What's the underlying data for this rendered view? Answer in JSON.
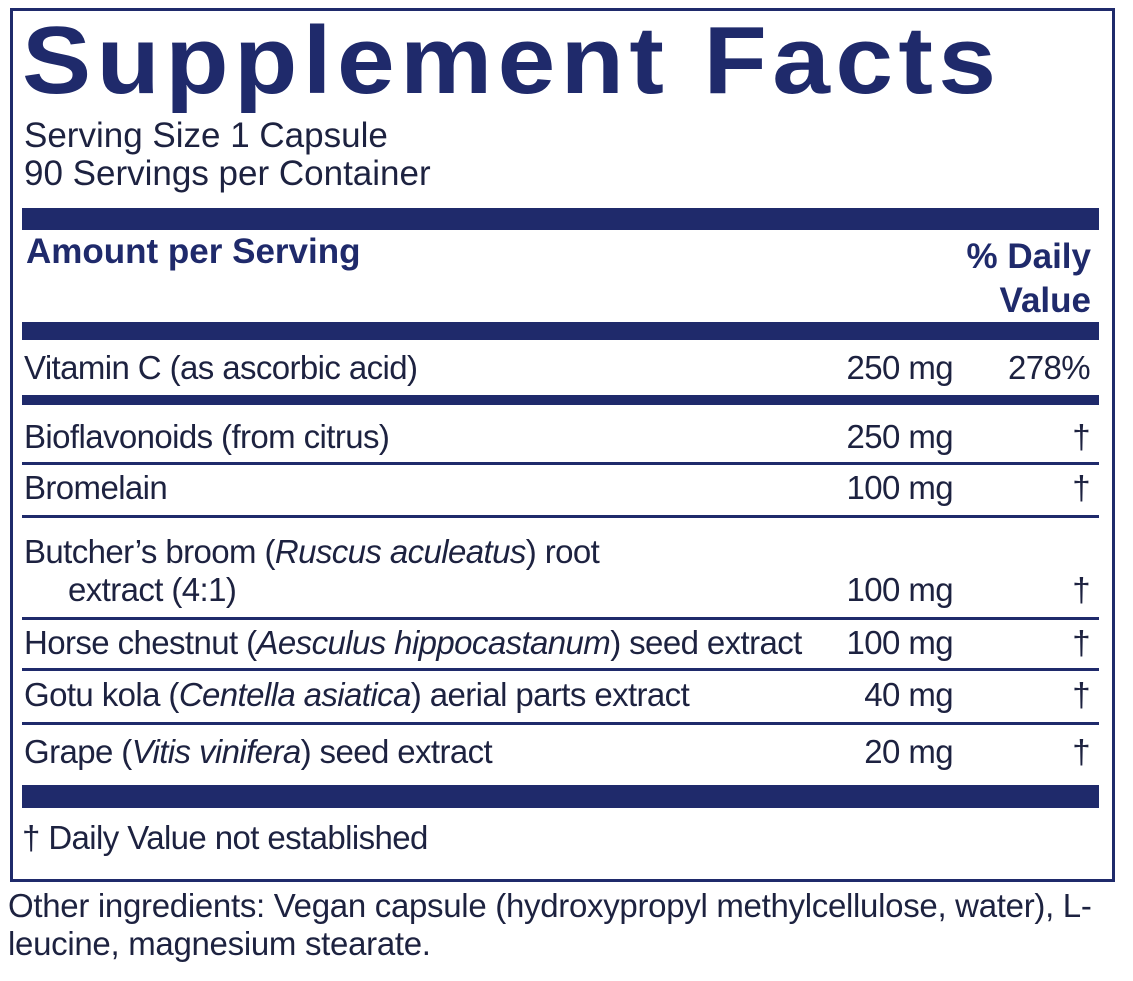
{
  "title": "Supplement Facts",
  "serving_size": "Serving Size 1 Capsule",
  "servings": "90 Servings per Container",
  "header": {
    "amount": "Amount per Serving",
    "dv_lines": [
      "% Daily",
      "Value"
    ]
  },
  "rows": [
    {
      "name": [
        {
          "text": "Vitamin C (as ascorbic acid)"
        }
      ],
      "amount": "250 mg",
      "dv": "278%"
    },
    {
      "name": [
        {
          "text": "Bioflavonoids (from citrus)"
        }
      ],
      "amount": "250 mg",
      "dv": "†"
    },
    {
      "name": [
        {
          "text": "Bromelain"
        }
      ],
      "amount": "100 mg",
      "dv": "†"
    },
    {
      "name": [
        {
          "text": "Butcher’s broom ("
        },
        {
          "text": "Ruscus aculeatus",
          "italic": true
        },
        {
          "text": ") root"
        }
      ],
      "name_line2": "extract (4:1)",
      "amount": "100 mg",
      "dv": "†"
    },
    {
      "name": [
        {
          "text": "Horse chestnut ("
        },
        {
          "text": "Aesculus hippocastanum",
          "italic": true
        },
        {
          "text": ") seed extract"
        }
      ],
      "amount": "100 mg",
      "dv": "†"
    },
    {
      "name": [
        {
          "text": "Gotu kola ("
        },
        {
          "text": "Centella asiatica",
          "italic": true
        },
        {
          "text": ") aerial parts extract"
        }
      ],
      "amount": "40 mg",
      "dv": "†"
    },
    {
      "name": [
        {
          "text": "Grape ("
        },
        {
          "text": "Vitis vinifera",
          "italic": true
        },
        {
          "text": ") seed extract"
        }
      ],
      "amount": "20 mg",
      "dv": "†"
    }
  ],
  "footnote": "† Daily Value not established",
  "other_ingredients": "Other ingredients: Vegan capsule (hydroxypropyl methylcellulose, water), L-leucine, magnesium stearate."
}
